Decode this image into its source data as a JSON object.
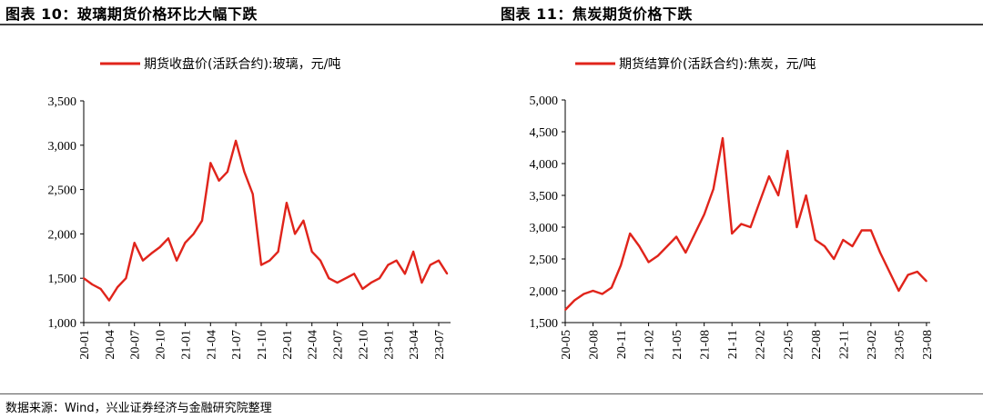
{
  "left_panel": {
    "title": "图表 10：玻璃期货价格环比大幅下跌"
  },
  "right_panel": {
    "title": "图表 11：焦炭期货价格下跌"
  },
  "source": "数据来源：Wind，兴业证券经济与金融研究院整理",
  "colors": {
    "series": "#e0241b",
    "axis": "#000000",
    "rule": "#3f3f3f"
  },
  "chart_data": [
    {
      "type": "line",
      "title": "图表 10：玻璃期货价格环比大幅下跌",
      "series": [
        {
          "name": "期货收盘价(活跃合约):玻璃，元/吨",
          "x": [
            "2020-01",
            "2020-02",
            "2020-03",
            "2020-04",
            "2020-05",
            "2020-06",
            "2020-07",
            "2020-08",
            "2020-09",
            "2020-10",
            "2020-11",
            "2020-12",
            "2021-01",
            "2021-02",
            "2021-03",
            "2021-04",
            "2021-05",
            "2021-06",
            "2021-07",
            "2021-08",
            "2021-09",
            "2021-10",
            "2021-11",
            "2021-12",
            "2022-01",
            "2022-02",
            "2022-03",
            "2022-04",
            "2022-05",
            "2022-06",
            "2022-07",
            "2022-08",
            "2022-09",
            "2022-10",
            "2022-11",
            "2022-12",
            "2023-01",
            "2023-02",
            "2023-03",
            "2023-04",
            "2023-05",
            "2023-06",
            "2023-07",
            "2023-08"
          ],
          "y": [
            1500,
            1430,
            1380,
            1250,
            1400,
            1500,
            1900,
            1700,
            1780,
            1850,
            1950,
            1700,
            1900,
            2000,
            2150,
            2800,
            2600,
            2700,
            3050,
            2700,
            2450,
            1650,
            1700,
            1800,
            2350,
            2000,
            2150,
            1800,
            1700,
            1500,
            1450,
            1500,
            1550,
            1380,
            1450,
            1500,
            1650,
            1700,
            1550,
            1800,
            1450,
            1650,
            1700,
            1550
          ]
        }
      ],
      "x_ticks": [
        "20-01",
        "20-04",
        "20-07",
        "20-10",
        "21-01",
        "21-04",
        "21-07",
        "21-10",
        "22-01",
        "22-04",
        "22-07",
        "22-10",
        "23-01",
        "23-04",
        "23-07"
      ],
      "y_ticks": [
        "1,000",
        "1,500",
        "2,000",
        "2,500",
        "3,000",
        "3,500"
      ],
      "ylim": [
        1000,
        3500
      ],
      "grid": false,
      "legend_position": "top"
    },
    {
      "type": "line",
      "title": "图表 11：焦炭期货价格下跌",
      "series": [
        {
          "name": "期货结算价(活跃合约):焦炭，元/吨",
          "x": [
            "2020-05",
            "2020-06",
            "2020-07",
            "2020-08",
            "2020-09",
            "2020-10",
            "2020-11",
            "2020-12",
            "2021-01",
            "2021-02",
            "2021-03",
            "2021-04",
            "2021-05",
            "2021-06",
            "2021-07",
            "2021-08",
            "2021-09",
            "2021-10",
            "2021-11",
            "2021-12",
            "2022-01",
            "2022-02",
            "2022-03",
            "2022-04",
            "2022-05",
            "2022-06",
            "2022-07",
            "2022-08",
            "2022-09",
            "2022-10",
            "2022-11",
            "2022-12",
            "2023-01",
            "2023-02",
            "2023-03",
            "2023-04",
            "2023-05",
            "2023-06",
            "2023-07",
            "2023-08"
          ],
          "y": [
            1700,
            1850,
            1950,
            2000,
            1950,
            2050,
            2400,
            2900,
            2700,
            2450,
            2550,
            2700,
            2850,
            2600,
            2900,
            3200,
            3600,
            4400,
            2900,
            3050,
            3000,
            3400,
            3800,
            3500,
            4200,
            3000,
            3500,
            2800,
            2700,
            2500,
            2800,
            2700,
            2950,
            2950,
            2600,
            2300,
            2000,
            2250,
            2300,
            2150
          ]
        }
      ],
      "x_ticks": [
        "20-05",
        "20-08",
        "20-11",
        "21-02",
        "21-05",
        "21-08",
        "21-11",
        "22-02",
        "22-05",
        "22-08",
        "22-11",
        "23-02",
        "23-05",
        "23-08"
      ],
      "y_ticks": [
        "1,500",
        "2,000",
        "2,500",
        "3,000",
        "3,500",
        "4,000",
        "4,500",
        "5,000"
      ],
      "ylim": [
        1500,
        5000
      ],
      "grid": false,
      "legend_position": "top"
    }
  ]
}
